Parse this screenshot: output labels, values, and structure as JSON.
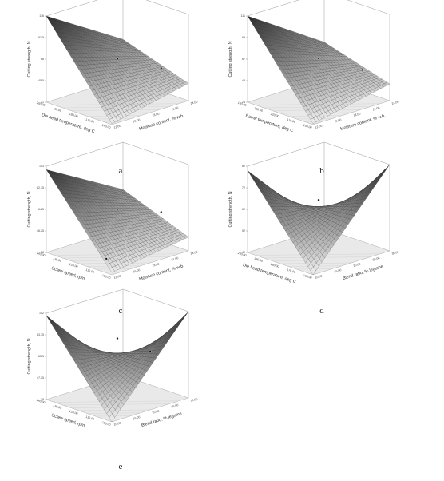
{
  "chart_data": [
    {
      "id": "a",
      "type": "surface3d",
      "panel_label": "a",
      "zlabel": "Cutting strength, N",
      "xlabel": "Moisture content, % w.b.",
      "ylabel": "Die head temperature, deg C",
      "x_ticks": [
        "12.00",
        "15.00",
        "18.00",
        "21.00",
        "24.00"
      ],
      "y_ticks": [
        "140.00",
        "170.00",
        "180.00",
        "190.00",
        "200.00"
      ],
      "z_ticks": [
        "21",
        "45.5",
        "68",
        "91.5",
        "116"
      ],
      "zlim": [
        21,
        116
      ],
      "surface_corners": {
        "x0y0": 22,
        "x1y0": 40,
        "x0y1": 116,
        "x1y1": 64
      },
      "design_points": [
        {
          "x": 0.5,
          "y": 0.5,
          "z": 68
        },
        {
          "x": 0.9,
          "y": 0.3,
          "z": 52
        }
      ]
    },
    {
      "id": "b",
      "type": "surface3d",
      "panel_label": "b",
      "zlabel": "Cutting strength, N",
      "xlabel": "Moisture content, % w.b.",
      "ylabel": "Barrel temperature, deg C",
      "x_ticks": [
        "12.00",
        "15.00",
        "18.00",
        "21.00",
        "24.00"
      ],
      "y_ticks": [
        "100.00",
        "110.00",
        "120.00",
        "130.00",
        "140.00"
      ],
      "z_ticks": [
        "23",
        "45",
        "67",
        "89",
        "111"
      ],
      "zlim": [
        23,
        111
      ],
      "surface_corners": {
        "x0y0": 24,
        "x1y0": 40,
        "x0y1": 111,
        "x1y1": 60
      },
      "design_points": [
        {
          "x": 0.5,
          "y": 0.5,
          "z": 67
        },
        {
          "x": 0.9,
          "y": 0.3,
          "z": 50
        }
      ]
    },
    {
      "id": "c",
      "type": "surface3d",
      "panel_label": "c",
      "zlabel": "Cutting strength, N",
      "xlabel": "Moisture content, % w.b.",
      "ylabel": "Screw speed, rpm",
      "x_ticks": [
        "12.00",
        "15.00",
        "18.00",
        "21.00",
        "24.00"
      ],
      "y_ticks": [
        "100.00",
        "110.00",
        "120.00",
        "130.00",
        "140.00"
      ],
      "z_ticks": [
        "28",
        "46.25",
        "64.5",
        "82.75",
        "103"
      ],
      "zlim": [
        28,
        103
      ],
      "surface_corners": {
        "x0y0": 30,
        "x1y0": 40,
        "x0y1": 100,
        "x1y1": 62
      },
      "design_points": [
        {
          "x": 0.5,
          "y": 0.5,
          "z": 65
        },
        {
          "x": 0.9,
          "y": 0.3,
          "z": 58
        },
        {
          "x": 0.15,
          "y": 0.7,
          "z": 72
        },
        {
          "x": 0.1,
          "y": 0.2,
          "z": 36
        }
      ]
    },
    {
      "id": "d",
      "type": "surface3d",
      "panel_label": "d",
      "zlabel": "Cutting strength, N",
      "xlabel": "Blend ratio, % legume",
      "ylabel": "Die head temperature, deg C",
      "x_ticks": [
        "10.00",
        "15.00",
        "20.00",
        "25.00",
        "30.00"
      ],
      "y_ticks": [
        "160.00",
        "170.00",
        "180.00",
        "190.00",
        "200.00"
      ],
      "z_ticks": [
        "42",
        "52",
        "62",
        "72",
        "82"
      ],
      "zlim": [
        42,
        82
      ],
      "saddle": true,
      "surface_corners": {
        "x0y0": 42,
        "x1y0": 82,
        "x0y1": 80,
        "x1y1": 42
      },
      "design_points": [
        {
          "x": 0.5,
          "y": 0.5,
          "z": 66
        },
        {
          "x": 0.8,
          "y": 0.35,
          "z": 60
        }
      ]
    },
    {
      "id": "e",
      "type": "surface3d",
      "panel_label": "e",
      "zlabel": "Cutting strength, N",
      "xlabel": "Blend ratio, % legume",
      "ylabel": "Screw speed, rpm",
      "x_ticks": [
        "10.00",
        "15.00",
        "20.00",
        "25.00",
        "30.00"
      ],
      "y_ticks": [
        "100.00",
        "110.00",
        "120.00",
        "130.00",
        "140.00"
      ],
      "z_ticks": [
        "29",
        "47.25",
        "65.5",
        "83.75",
        "102"
      ],
      "zlim": [
        29,
        102
      ],
      "saddle": true,
      "surface_corners": {
        "x0y0": 29,
        "x1y0": 102,
        "x0y1": 100,
        "x1y1": 29
      },
      "design_points": [
        {
          "x": 0.5,
          "y": 0.5,
          "z": 80
        },
        {
          "x": 0.8,
          "y": 0.35,
          "z": 66
        }
      ]
    }
  ]
}
